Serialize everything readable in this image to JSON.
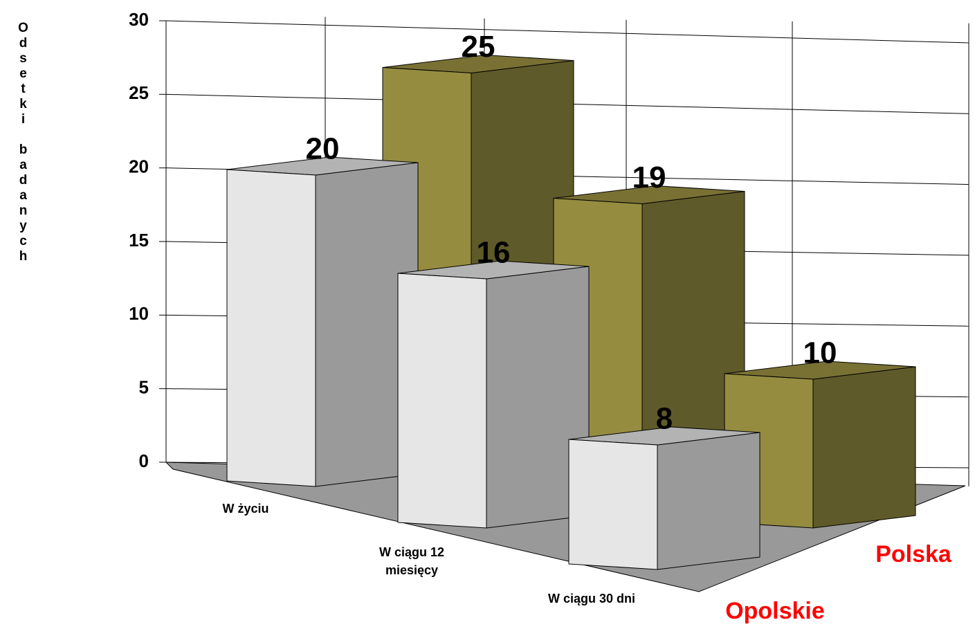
{
  "chart_data": {
    "type": "bar",
    "y_label": "Odsetki badanych",
    "categories": [
      "W życiu",
      "W ciągu 12 miesięcy",
      "W ciągu 30 dni"
    ],
    "series": [
      {
        "name": "Opolskie",
        "color": "#e6e6e6",
        "values": [
          20,
          16,
          8
        ]
      },
      {
        "name": "Polska",
        "color": "#958c40",
        "values": [
          25,
          19,
          10
        ]
      }
    ],
    "ylim": [
      0,
      30
    ],
    "yticks": [
      0,
      5,
      10,
      15,
      20,
      25,
      30
    ],
    "grid": true
  }
}
